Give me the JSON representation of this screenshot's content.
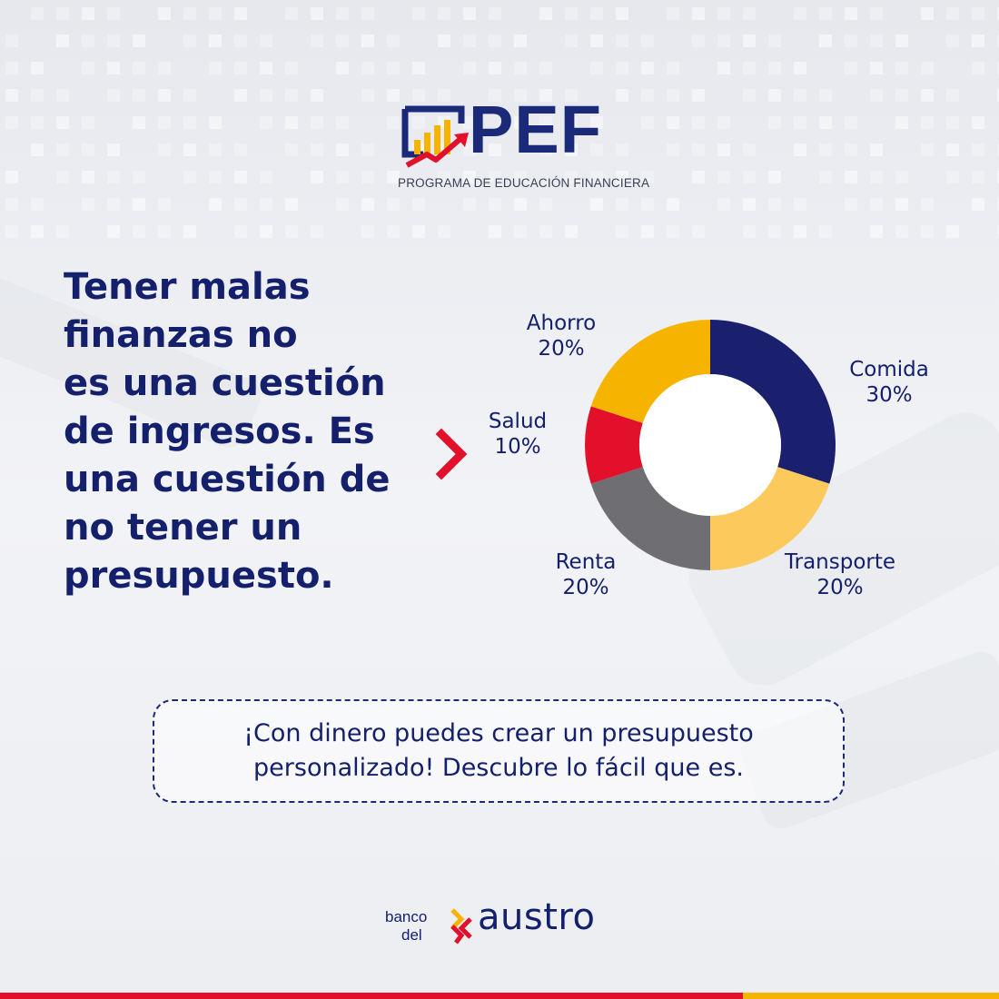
{
  "logo": {
    "name": "PEF",
    "subtitle": "PROGRAMA DE EDUCACIÓN FINANCIERA",
    "icon": "rising-bars-arrow-icon",
    "colors": {
      "navy": "#1a2a78",
      "gold": "#f6b400",
      "red": "#e3102c"
    }
  },
  "headline": {
    "lines": [
      "Tener malas",
      "finanzas no",
      "es una cuestión",
      "de ingresos. Es",
      "una cuestión de",
      "no tener un",
      "presupuesto."
    ]
  },
  "chevron_icon": "chevron-right-icon",
  "chart_data": {
    "type": "pie",
    "donut": true,
    "title": "",
    "unit": "%",
    "slices": [
      {
        "label": "Comida",
        "value": 30,
        "value_label": "30%",
        "color": "#1a1f6e"
      },
      {
        "label": "Transporte",
        "value": 20,
        "value_label": "20%",
        "color": "#fcca5c"
      },
      {
        "label": "Renta",
        "value": 20,
        "value_label": "20%",
        "color": "#6e6e73"
      },
      {
        "label": "Salud",
        "value": 10,
        "value_label": "10%",
        "color": "#e3102c"
      },
      {
        "label": "Ahorro",
        "value": 20,
        "value_label": "20%",
        "color": "#f6b400"
      }
    ],
    "legend": "none"
  },
  "cta": {
    "line1": "¡Con dinero puedes crear un presupuesto",
    "line2": "personalizado! Descubre lo fácil que es."
  },
  "bank": {
    "small_line1": "banco",
    "small_line2": "del",
    "name": "austro",
    "icon": "banco-del-austro-mark-icon"
  },
  "footer_bar_colors": [
    "#e3102c",
    "#f6b400"
  ]
}
